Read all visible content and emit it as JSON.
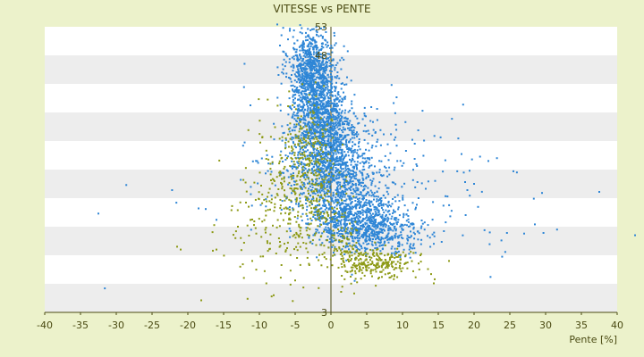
{
  "chart_data": {
    "type": "scatter",
    "title": "VITESSE vs PENTE",
    "xlabel": "Pente [%]",
    "ylabel": "",
    "xlim": [
      -40,
      40
    ],
    "ylim": [
      3,
      53
    ],
    "x_ticks": [
      "-40",
      "-35",
      "-30",
      "-25",
      "-20",
      "-15",
      "-10",
      "-5",
      "0",
      "5",
      "10",
      "15",
      "20",
      "25",
      "30",
      "35",
      "40"
    ],
    "y_ticks_printed": [
      "53",
      "48",
      "3"
    ],
    "y_ticks": [
      3,
      8,
      13,
      18,
      23,
      28,
      33,
      38,
      43,
      48,
      53
    ],
    "grid": true,
    "legend": "none",
    "colors": {
      "blue": "#2e86d6",
      "olive": "#8d9a16",
      "band_light": "#ffffff",
      "band_dark": "#ededed",
      "axis": "#4a4a12",
      "background": "#ecf2cb"
    },
    "series": [
      {
        "color": "#2e86d6",
        "clusters": [
          {
            "cx": -2.8,
            "cy": 46,
            "sx": 1.6,
            "sy": 3.5,
            "n": 600
          },
          {
            "cx": -1.8,
            "cy": 40,
            "sx": 1.8,
            "sy": 4.0,
            "n": 700
          },
          {
            "cx": -0.8,
            "cy": 33,
            "sx": 2.3,
            "sy": 4.0,
            "n": 700
          },
          {
            "cx": 0.8,
            "cy": 27,
            "sx": 3.0,
            "sy": 3.5,
            "n": 650
          },
          {
            "cx": 3.0,
            "cy": 20,
            "sx": 3.0,
            "sy": 2.5,
            "n": 650
          },
          {
            "cx": 6.5,
            "cy": 17,
            "sx": 3.5,
            "sy": 1.8,
            "n": 400
          },
          {
            "cx": 5.0,
            "cy": 31,
            "sx": 6.0,
            "sy": 5.0,
            "n": 160
          },
          {
            "cx": 14.0,
            "cy": 22,
            "sx": 7.0,
            "sy": 5.0,
            "n": 70
          },
          {
            "cx": -7.0,
            "cy": 30,
            "sx": 4.0,
            "sy": 6.0,
            "n": 60
          }
        ],
        "points": [
          {
            "x": -32.5,
            "y": 20.3
          },
          {
            "x": -28.6,
            "y": 25.3
          },
          {
            "x": -31.6,
            "y": 7.2
          },
          {
            "x": -22.2,
            "y": 24.4
          },
          {
            "x": -21.6,
            "y": 22.2
          },
          {
            "x": -18.5,
            "y": 21.2
          },
          {
            "x": -17.5,
            "y": 21.1
          },
          {
            "x": -16.0,
            "y": 19.2
          },
          {
            "x": -12.6,
            "y": 26.2
          },
          {
            "x": 37.5,
            "y": 24.1
          },
          {
            "x": 42.5,
            "y": 16.5
          },
          {
            "x": 29.5,
            "y": 23.9
          },
          {
            "x": 25.5,
            "y": 27.7
          },
          {
            "x": 31.6,
            "y": 17.5
          },
          {
            "x": 22.3,
            "y": 9.2
          },
          {
            "x": 27.0,
            "y": 16.8
          },
          {
            "x": 24.6,
            "y": 16.9
          },
          {
            "x": 22.2,
            "y": 17.0
          },
          {
            "x": 29.7,
            "y": 16.9
          },
          {
            "x": 28.5,
            "y": 18.4
          },
          {
            "x": 20.0,
            "y": 25.5
          },
          {
            "x": 22.0,
            "y": 29.5
          },
          {
            "x": 23.2,
            "y": 30.0
          },
          {
            "x": -7.5,
            "y": 53.4
          },
          {
            "x": -4.3,
            "y": 53.3
          },
          {
            "x": -2.4,
            "y": 52.6
          },
          {
            "x": -6.0,
            "y": 50.8
          }
        ]
      },
      {
        "color": "#8d9a16",
        "clusters": [
          {
            "cx": -5.5,
            "cy": 24,
            "sx": 3.0,
            "sy": 7.0,
            "n": 260
          },
          {
            "cx": -3.0,
            "cy": 32,
            "sx": 1.5,
            "sy": 3.5,
            "n": 120
          },
          {
            "cx": -1.5,
            "cy": 22,
            "sx": 2.0,
            "sy": 4.5,
            "n": 130
          },
          {
            "cx": 6.5,
            "cy": 11.5,
            "sx": 2.5,
            "sy": 1.3,
            "n": 230
          },
          {
            "cx": 2.5,
            "cy": 13.5,
            "sx": 1.2,
            "sy": 3.0,
            "n": 80
          },
          {
            "cx": -9.0,
            "cy": 17,
            "sx": 3.5,
            "sy": 5.0,
            "n": 60
          }
        ],
        "points": [
          {
            "x": -21.5,
            "y": 14.5
          },
          {
            "x": -21.0,
            "y": 14.0
          },
          {
            "x": -16.0,
            "y": 14.0
          },
          {
            "x": -16.5,
            "y": 13.8
          },
          {
            "x": -11.0,
            "y": 12.0
          },
          {
            "x": -8.0,
            "y": 6.0
          },
          {
            "x": -5.0,
            "y": 8.6
          },
          {
            "x": -8.5,
            "y": 21.0
          },
          {
            "x": 14.5,
            "y": 8.8
          },
          {
            "x": 11.5,
            "y": 10.2
          },
          {
            "x": 14.0,
            "y": 9.7
          },
          {
            "x": 16.5,
            "y": 12.0
          },
          {
            "x": 12.5,
            "y": 13.0
          },
          {
            "x": -13.0,
            "y": 18.0
          },
          {
            "x": -11.5,
            "y": 21.5
          }
        ]
      }
    ]
  }
}
